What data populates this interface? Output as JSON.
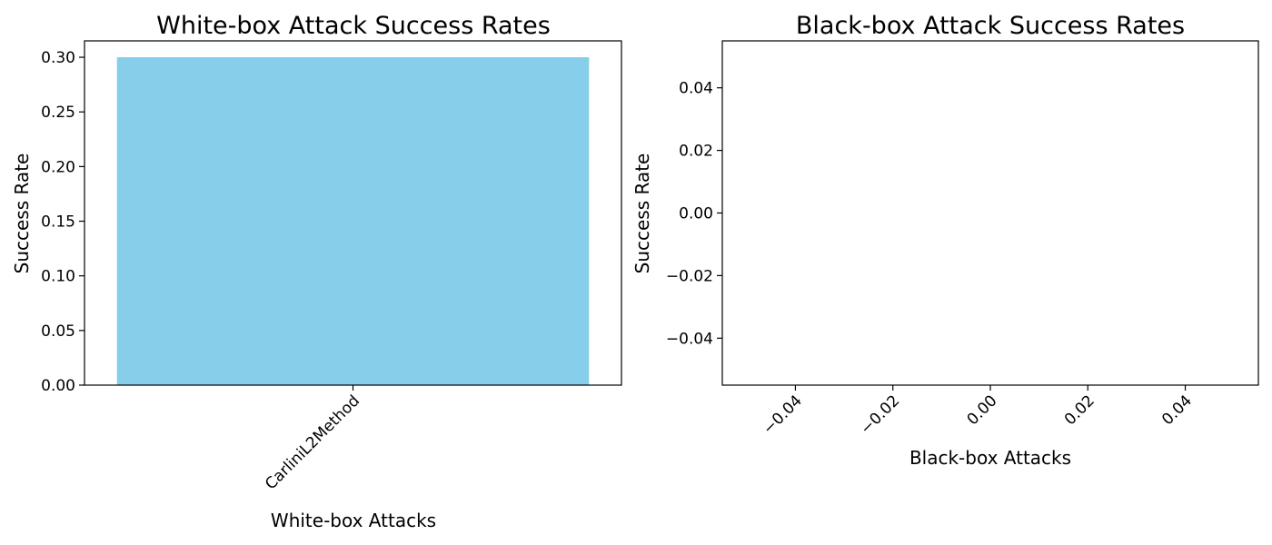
{
  "chart_data": [
    {
      "type": "bar",
      "title": "White-box Attack Success Rates",
      "xlabel": "White-box Attacks",
      "ylabel": "Success Rate",
      "categories": [
        "CarliniL2Method"
      ],
      "values": [
        0.3
      ],
      "ylim": [
        0,
        0.315
      ],
      "yticks": [
        "0.00",
        "0.05",
        "0.10",
        "0.15",
        "0.20",
        "0.25",
        "0.30"
      ],
      "xtick_rotation": -45,
      "bar_color": "#87ceeb"
    },
    {
      "type": "bar",
      "title": "Black-box Attack Success Rates",
      "xlabel": "Black-box Attacks",
      "ylabel": "Success Rate",
      "categories": [],
      "values": [],
      "xlim": [
        -0.055,
        0.055
      ],
      "ylim": [
        -0.055,
        0.055
      ],
      "xticks": [
        "−0.04",
        "−0.02",
        "0.00",
        "0.02",
        "0.04"
      ],
      "yticks": [
        "−0.04",
        "−0.02",
        "0.00",
        "0.02",
        "0.04"
      ],
      "xtick_rotation": -45,
      "bar_color": "#87ceeb"
    }
  ]
}
